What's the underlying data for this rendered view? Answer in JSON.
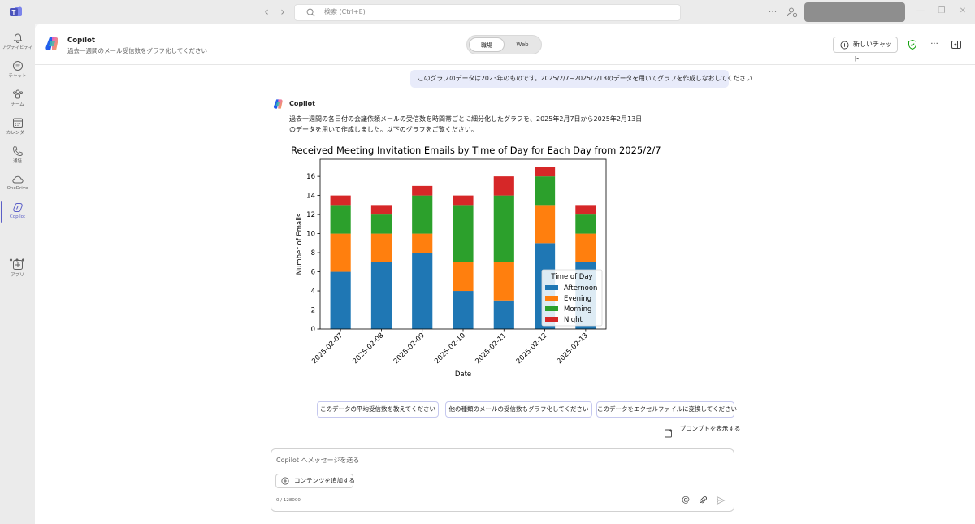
{
  "titlebar": {
    "search_placeholder": "検索 (Ctrl+E)"
  },
  "rail": {
    "items": [
      {
        "label": "アクティビティ",
        "icon": "bell-icon"
      },
      {
        "label": "チャット",
        "icon": "chat-icon"
      },
      {
        "label": "チーム",
        "icon": "teams-icon"
      },
      {
        "label": "カレンダー",
        "icon": "calendar-icon"
      },
      {
        "label": "通話",
        "icon": "phone-icon"
      },
      {
        "label": "OneDrive",
        "icon": "cloud-icon"
      },
      {
        "label": "Copilot",
        "icon": "copilot-icon"
      },
      {
        "label": "アプリ",
        "icon": "apps-add-icon"
      }
    ],
    "active_index": 6
  },
  "header": {
    "title": "Copilot",
    "subtitle": "過去一週間のメール受信数をグラフ化してください",
    "toggle_work": "職場",
    "toggle_web": "Web",
    "new_chat": "新しいチャット"
  },
  "conversation": {
    "user_message": "このグラフのデータは2023年のものです。2025/2/7~2025/2/13のデータを用いてグラフを作成しなおしてください",
    "bot_name": "Copilot",
    "bot_line1": "過去一週間の各日付の会議依頼メールの受信数を時間帯ごとに細分化したグラフを、2025年2月7日から2025年2月13日",
    "bot_line2": "のデータを用いて作成しました。以下のグラフをご覧ください。"
  },
  "chart_data": {
    "type": "bar",
    "stacked": true,
    "title": "Received Meeting Invitation Emails by Time of Day for Each Day from 2025/2/7",
    "xlabel": "Date",
    "ylabel": "Number of Emails",
    "ylim": [
      0,
      17.8
    ],
    "yticks": [
      0,
      2,
      4,
      6,
      8,
      10,
      12,
      14,
      16
    ],
    "categories": [
      "2025-02-07",
      "2025-02-08",
      "2025-02-09",
      "2025-02-10",
      "2025-02-11",
      "2025-02-12",
      "2025-02-13"
    ],
    "legend_title": "Time of Day",
    "legend_position": "lower-right",
    "series": [
      {
        "name": "Afternoon",
        "color": "#1f77b4",
        "values": [
          6,
          7,
          8,
          4,
          3,
          9,
          7
        ]
      },
      {
        "name": "Evening",
        "color": "#ff7f0e",
        "values": [
          4,
          3,
          2,
          3,
          4,
          4,
          3
        ]
      },
      {
        "name": "Morning",
        "color": "#2ca02c",
        "values": [
          3,
          2,
          4,
          6,
          7,
          3,
          2
        ]
      },
      {
        "name": "Night",
        "color": "#d62728",
        "values": [
          1,
          1,
          1,
          1,
          2,
          1,
          1
        ]
      }
    ]
  },
  "suggestions": [
    "このデータの平均受信数を教えてください",
    "他の種類のメールの受信数もグラフ化してください",
    "このデータをエクセルファイルに変換してください"
  ],
  "show_prompts": "プロンプトを表示する",
  "composer": {
    "placeholder": "Copilot へメッセージを送る",
    "add_content": "コンテンツを追加する",
    "counter": "0 / 128000"
  },
  "colors": {
    "accent": "#5b5fc7",
    "user_bubble": "#e8ebfa"
  }
}
